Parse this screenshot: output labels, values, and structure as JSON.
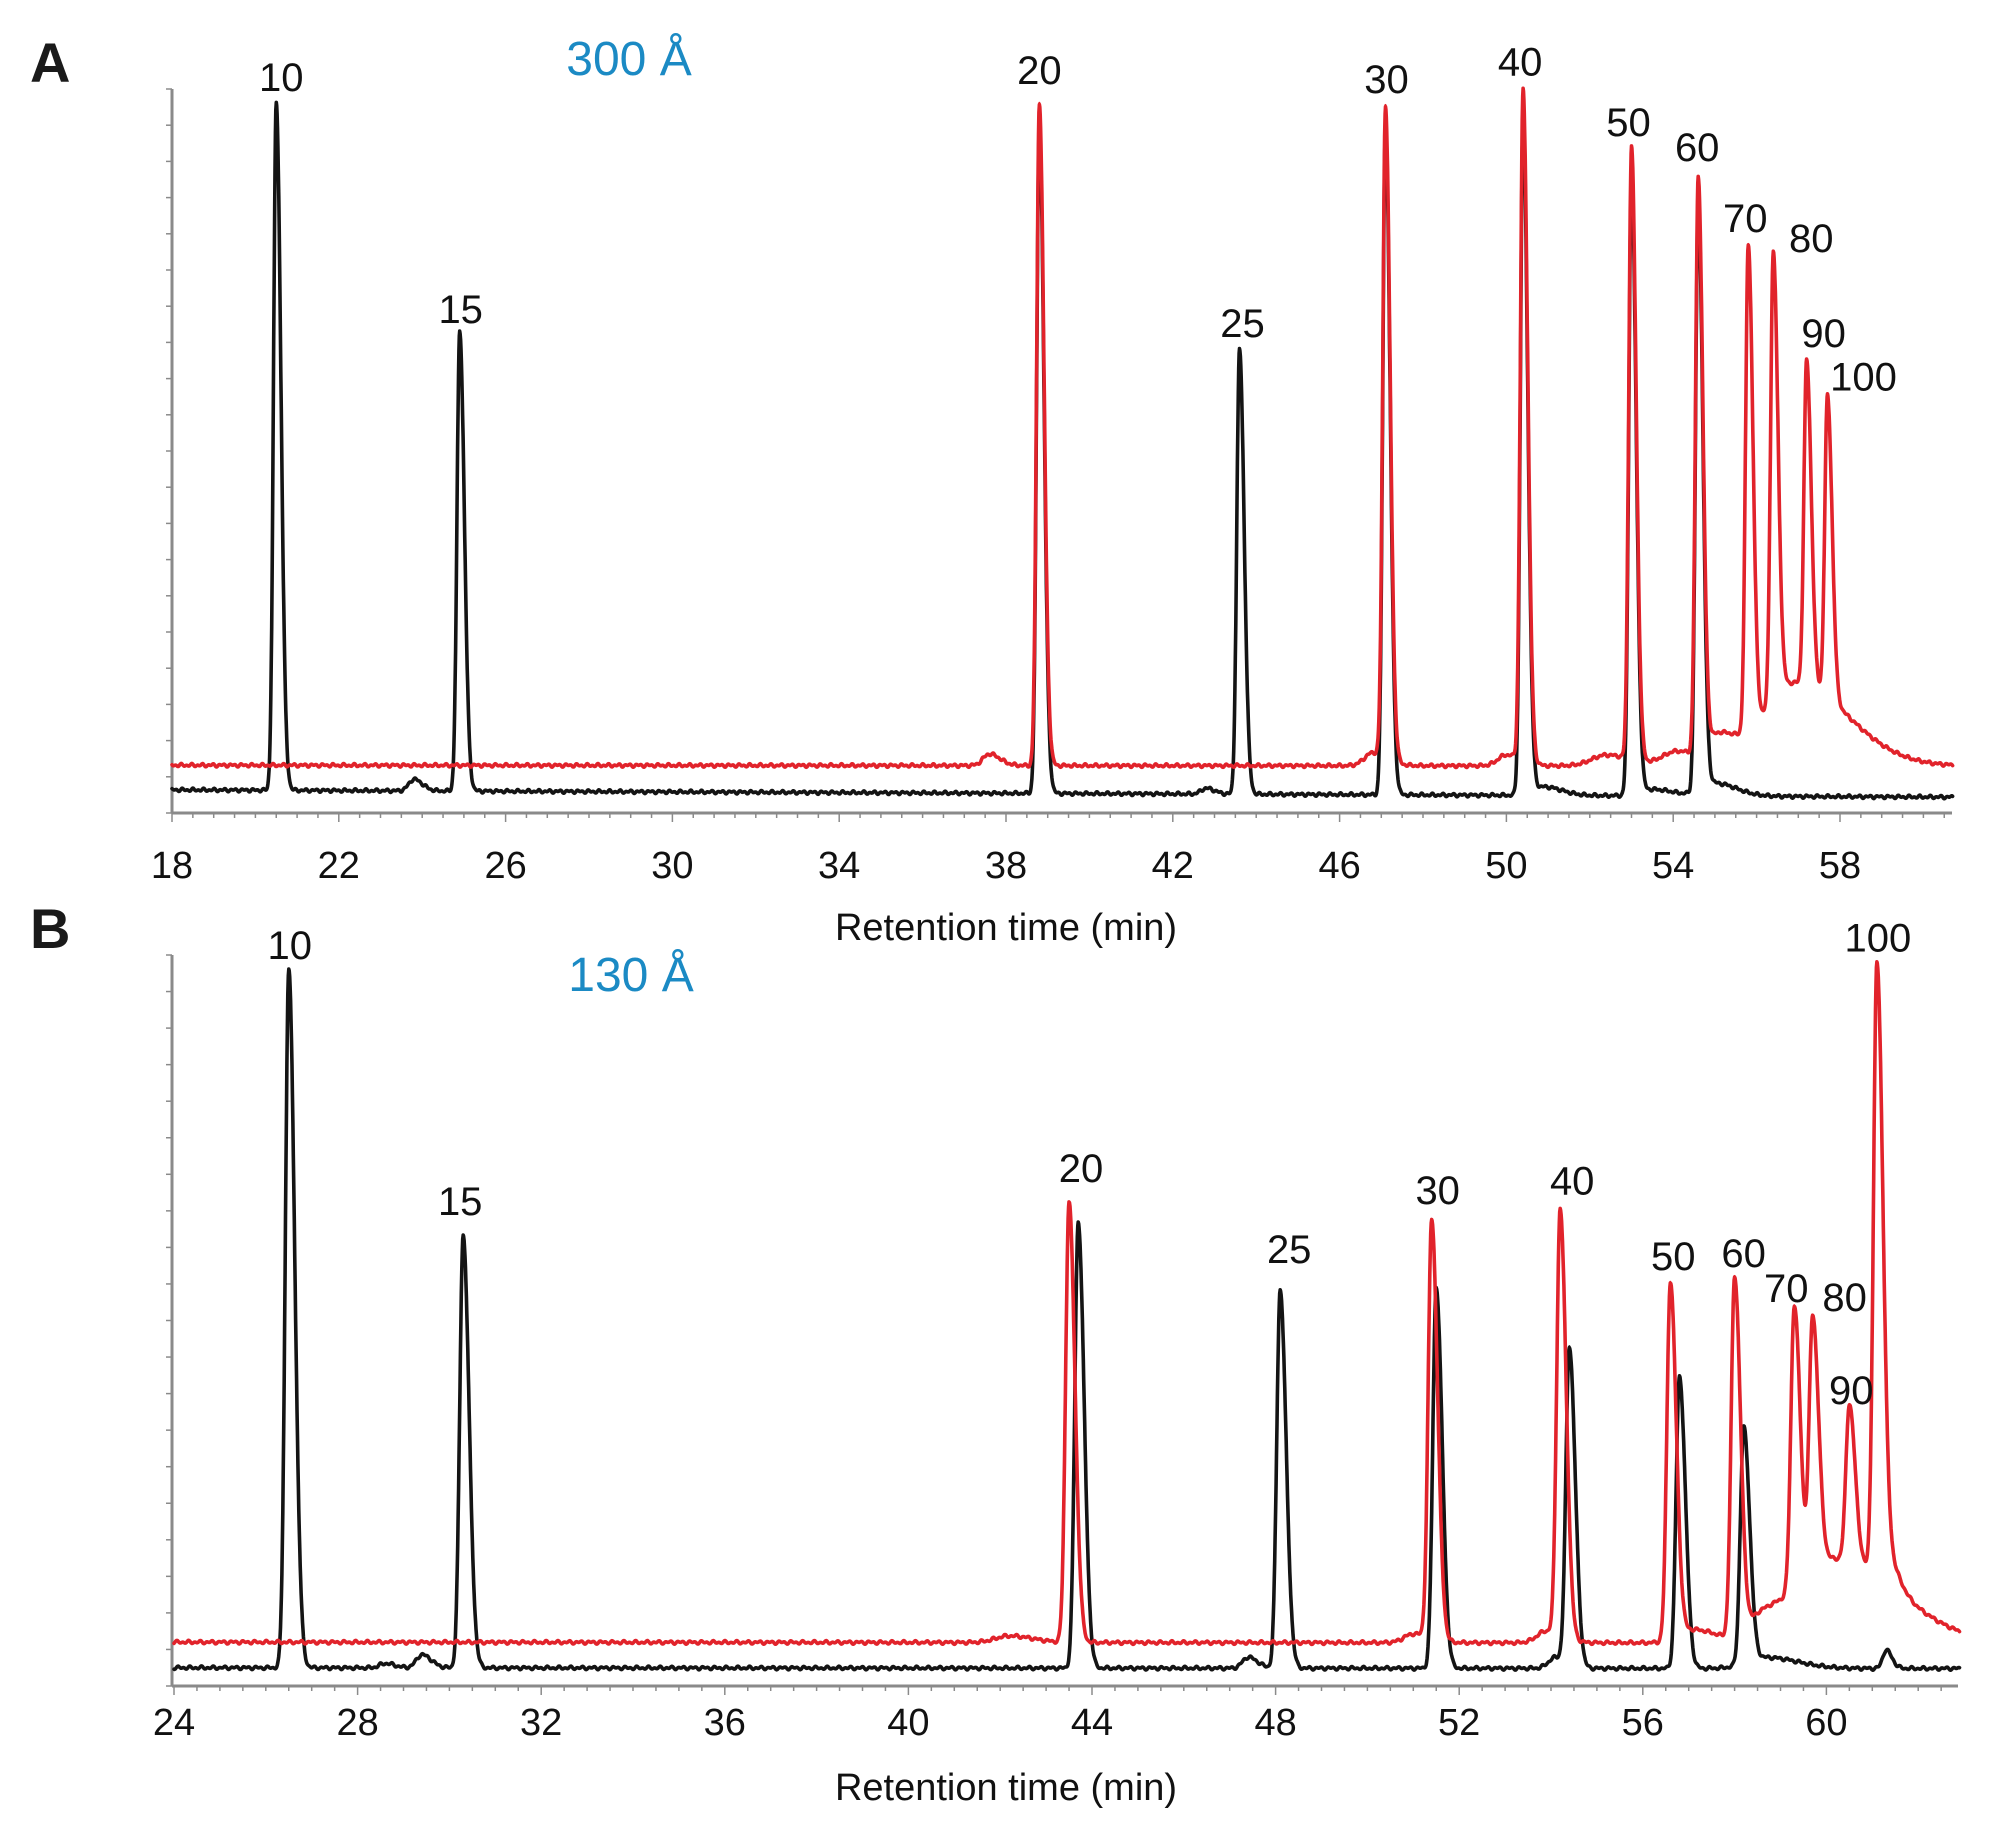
{
  "colors": {
    "black_trace": "#141414",
    "red_trace": "#e1232b",
    "pore_label": "#1b8ac4",
    "axis": "#8a8a8a"
  },
  "chart_data": [
    {
      "type": "line",
      "panel": "A",
      "pore_size": "300 Å",
      "xlabel": "Retention time (min)",
      "ylabel": "",
      "xlim": [
        18,
        60.7
      ],
      "ylim": [
        0,
        100
      ],
      "x_ticks": [
        "18",
        "22",
        "26",
        "30",
        "34",
        "38",
        "42",
        "46",
        "50",
        "54",
        "58"
      ],
      "grid": false,
      "series": [
        {
          "name": "black",
          "color": "#141414",
          "baseline": [
            3.2,
            2.2
          ],
          "peaks": [
            {
              "label": "10",
              "t": 20.5,
              "h": 98.2
            },
            {
              "label": "15",
              "t": 24.9,
              "h": 66.6
            },
            {
              "label": "",
              "t": 38.8,
              "h": 95.0
            },
            {
              "label": "25",
              "t": 43.6,
              "h": 64.1
            },
            {
              "label": "",
              "t": 47.1,
              "h": 95.0
            },
            {
              "label": "",
              "t": 50.4,
              "h": 96.0
            },
            {
              "label": "",
              "t": 53.0,
              "h": 88.0
            },
            {
              "label": "",
              "t": 54.6,
              "h": 85.0
            }
          ],
          "bumps": [
            {
              "t": 23.8,
              "h": 1.6,
              "w": 0.12
            },
            {
              "t": 42.8,
              "h": 0.8,
              "w": 0.12
            },
            {
              "t": 50.9,
              "h": 1.2,
              "w": 0.25
            },
            {
              "t": 53.5,
              "h": 0.9,
              "w": 0.3
            },
            {
              "t": 55.0,
              "h": 1.8,
              "w": 0.3
            }
          ]
        },
        {
          "name": "red",
          "color": "#e1232b",
          "baseline": [
            6.6,
            6.5
          ],
          "peaks": [
            {
              "label": "20",
              "t": 38.8,
              "h": 98.1
            },
            {
              "label": "30",
              "t": 47.1,
              "h": 97.8
            },
            {
              "label": "40",
              "t": 50.4,
              "h": 99.9
            },
            {
              "label": "50",
              "t": 53.0,
              "h": 92.0
            },
            {
              "label": "60",
              "t": 54.6,
              "h": 88.0
            },
            {
              "label": "70",
              "t": 55.8,
              "h": 78.6
            },
            {
              "label": "80",
              "t": 56.4,
              "h": 77.5
            },
            {
              "label": "90",
              "t": 57.2,
              "h": 62.6
            },
            {
              "label": "100",
              "t": 57.7,
              "h": 57.7
            }
          ],
          "bumps": [
            {
              "t": 37.6,
              "h": 1.6,
              "w": 0.15
            },
            {
              "t": 46.8,
              "h": 1.8,
              "w": 0.2
            },
            {
              "t": 50.0,
              "h": 1.5,
              "w": 0.2
            },
            {
              "t": 52.4,
              "h": 1.5,
              "w": 0.35
            },
            {
              "t": 54.1,
              "h": 2.0,
              "w": 0.35
            },
            {
              "t": 55.1,
              "h": 3.5,
              "w": 0.25
            },
            {
              "t": 56.9,
              "h": 11.5,
              "w": 0.75
            }
          ]
        }
      ]
    },
    {
      "type": "line",
      "panel": "B",
      "pore_size": "130 Å",
      "xlabel": "Retention time (min)",
      "ylabel": "",
      "xlim": [
        24,
        62.9
      ],
      "ylim": [
        0,
        100
      ],
      "x_ticks": [
        "24",
        "28",
        "32",
        "36",
        "40",
        "44",
        "48",
        "52",
        "56",
        "60"
      ],
      "grid": false,
      "series": [
        {
          "name": "black",
          "color": "#141414",
          "baseline": [
            2.5,
            2.4
          ],
          "peaks": [
            {
              "label": "10",
              "t": 26.5,
              "h": 98.1
            },
            {
              "label": "15",
              "t": 30.3,
              "h": 61.7
            },
            {
              "label": "",
              "t": 43.7,
              "h": 63.5
            },
            {
              "label": "25",
              "t": 48.1,
              "h": 54.2
            },
            {
              "label": "",
              "t": 51.5,
              "h": 54.6
            },
            {
              "label": "",
              "t": 54.4,
              "h": 46.5
            },
            {
              "label": "",
              "t": 56.8,
              "h": 42.3
            },
            {
              "label": "",
              "t": 58.2,
              "h": 35.4
            },
            {
              "label": "",
              "t": 61.3,
              "h": 4.9
            }
          ],
          "bumps": [
            {
              "t": 29.4,
              "h": 1.8,
              "w": 0.12
            },
            {
              "t": 28.6,
              "h": 0.6,
              "w": 0.12
            },
            {
              "t": 47.4,
              "h": 1.5,
              "w": 0.12
            },
            {
              "t": 54.1,
              "h": 1.5,
              "w": 0.15
            },
            {
              "t": 58.7,
              "h": 1.5,
              "w": 0.4
            }
          ]
        },
        {
          "name": "red",
          "color": "#e1232b",
          "baseline": [
            6.0,
            5.9
          ],
          "peaks": [
            {
              "label": "20",
              "t": 43.5,
              "h": 66.2
            },
            {
              "label": "30",
              "t": 51.4,
              "h": 63.9
            },
            {
              "label": "40",
              "t": 54.2,
              "h": 65.3
            },
            {
              "label": "50",
              "t": 56.6,
              "h": 55.3
            },
            {
              "label": "60",
              "t": 58.0,
              "h": 56.1
            },
            {
              "label": "70",
              "t": 59.3,
              "h": 52.1
            },
            {
              "label": "80",
              "t": 59.7,
              "h": 50.6
            },
            {
              "label": "90",
              "t": 60.5,
              "h": 38.6
            },
            {
              "label": "100",
              "t": 61.1,
              "h": 99.0
            }
          ],
          "bumps": [
            {
              "t": 42.2,
              "h": 0.9,
              "w": 0.3
            },
            {
              "t": 51.0,
              "h": 1.2,
              "w": 0.2
            },
            {
              "t": 53.9,
              "h": 1.6,
              "w": 0.2
            },
            {
              "t": 57.1,
              "h": 1.8,
              "w": 0.3
            },
            {
              "t": 58.6,
              "h": 3.0,
              "w": 0.3
            },
            {
              "t": 60.2,
              "h": 11.5,
              "w": 0.8
            },
            {
              "t": 61.3,
              "h": 4.0,
              "w": 0.15
            }
          ]
        }
      ]
    }
  ]
}
